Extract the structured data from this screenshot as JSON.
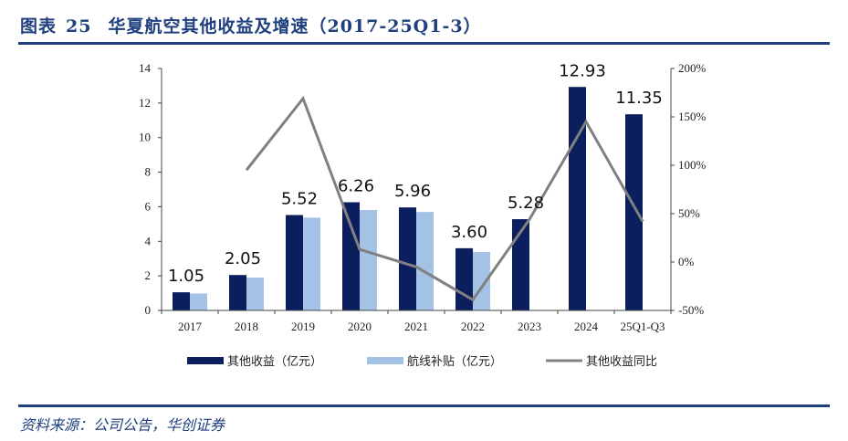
{
  "header": {
    "figure_label": "图表",
    "figure_number": "25",
    "title": "华夏航空其他收益及增速（2017-25Q1-3）"
  },
  "footer": {
    "source": "资料来源：公司公告，华创证券"
  },
  "colors": {
    "accent": "#1f3f7f",
    "other_income": "#0b1f5e",
    "route_subsidy": "#a4c2e6",
    "yoy_line": "#808080"
  },
  "chart_data": {
    "type": "bar",
    "title": "华夏航空其他收益及增速（2017-25Q1-3）",
    "categories": [
      "2017",
      "2018",
      "2019",
      "2020",
      "2021",
      "2022",
      "2023",
      "2024",
      "25Q1-Q3"
    ],
    "series": [
      {
        "name": "其他收益（亿元）",
        "type": "bar",
        "axis": "left",
        "values": [
          1.05,
          2.05,
          5.52,
          6.26,
          5.96,
          3.6,
          5.28,
          12.93,
          11.35
        ],
        "data_labels": [
          "1.05",
          "2.05",
          "5.52",
          "6.26",
          "5.96",
          "3.60",
          "5.28",
          "12.93",
          "11.35"
        ]
      },
      {
        "name": "航线补贴（亿元）",
        "type": "bar",
        "axis": "left",
        "values": [
          0.98,
          1.9,
          5.37,
          5.81,
          5.7,
          3.38,
          null,
          null,
          null
        ]
      },
      {
        "name": "其他收益同比",
        "type": "line",
        "axis": "right",
        "unit": "%",
        "values": [
          null,
          95,
          169,
          13,
          -5,
          -39,
          44,
          145,
          42
        ]
      }
    ],
    "left_axis": {
      "ylim": [
        0,
        14
      ],
      "ticks": [
        0,
        2,
        4,
        6,
        8,
        10,
        12,
        14
      ]
    },
    "right_axis": {
      "ylim": [
        -50,
        200
      ],
      "ticks": [
        "-50%",
        "0%",
        "50%",
        "100%",
        "150%",
        "200%"
      ],
      "tick_values": [
        -50,
        0,
        50,
        100,
        150,
        200
      ]
    },
    "xlabel": "",
    "ylabel": "",
    "grid": false,
    "legend_position": "bottom"
  }
}
